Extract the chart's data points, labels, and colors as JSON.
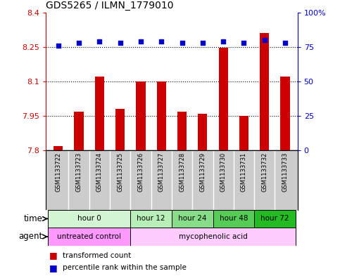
{
  "title": "GDS5265 / ILMN_1779010",
  "samples": [
    "GSM1133722",
    "GSM1133723",
    "GSM1133724",
    "GSM1133725",
    "GSM1133726",
    "GSM1133727",
    "GSM1133728",
    "GSM1133729",
    "GSM1133730",
    "GSM1133731",
    "GSM1133732",
    "GSM1133733"
  ],
  "bar_values": [
    7.82,
    7.97,
    8.12,
    7.98,
    8.1,
    8.1,
    7.97,
    7.96,
    8.245,
    7.95,
    8.31,
    8.12
  ],
  "percentile_values": [
    76,
    78,
    79,
    78,
    79,
    79,
    78,
    78,
    79,
    78,
    80,
    78
  ],
  "bar_color": "#cc0000",
  "dot_color": "#0000cc",
  "ylim_left": [
    7.8,
    8.4
  ],
  "ylim_right": [
    0,
    100
  ],
  "yticks_left": [
    7.8,
    7.95,
    8.1,
    8.25,
    8.4
  ],
  "yticks_right": [
    0,
    25,
    50,
    75,
    100
  ],
  "ytick_labels_left": [
    "7.8",
    "7.95",
    "8.1",
    "8.25",
    "8.4"
  ],
  "ytick_labels_right": [
    "0",
    "25",
    "50",
    "75",
    "100%"
  ],
  "dotted_lines": [
    7.95,
    8.1,
    8.25
  ],
  "time_groups": [
    {
      "label": "hour 0",
      "start": 0,
      "end": 3,
      "color": "#d4f5d4"
    },
    {
      "label": "hour 12",
      "start": 4,
      "end": 5,
      "color": "#b8eeb8"
    },
    {
      "label": "hour 24",
      "start": 6,
      "end": 7,
      "color": "#88dd88"
    },
    {
      "label": "hour 48",
      "start": 8,
      "end": 9,
      "color": "#55cc55"
    },
    {
      "label": "hour 72",
      "start": 10,
      "end": 11,
      "color": "#22bb22"
    }
  ],
  "agent_groups": [
    {
      "label": "untreated control",
      "start": 0,
      "end": 3,
      "color": "#ff99ff"
    },
    {
      "label": "mycophenolic acid",
      "start": 4,
      "end": 11,
      "color": "#ffccff"
    }
  ],
  "legend_bar_label": "transformed count",
  "legend_dot_label": "percentile rank within the sample",
  "time_label": "time",
  "agent_label": "agent",
  "bar_width": 0.45,
  "sample_label_fontsize": 6,
  "axis_tick_fontsize": 8,
  "axis_label_color_left": "#cc0000",
  "axis_label_color_right": "#0000cc",
  "background_plot": "#ffffff",
  "background_sample": "#cccccc"
}
